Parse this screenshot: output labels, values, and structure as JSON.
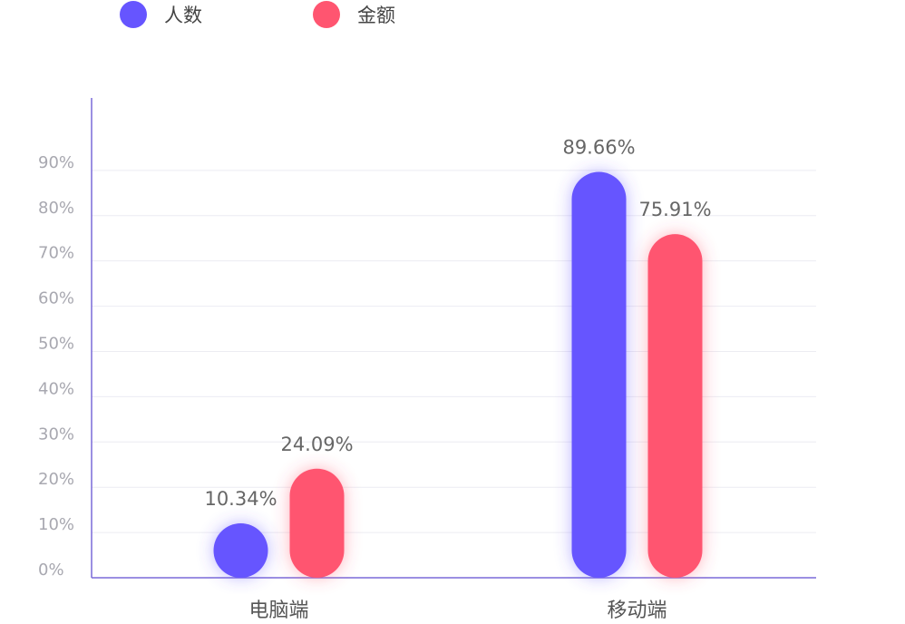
{
  "chart_data": {
    "type": "bar",
    "categories": [
      "电脑端",
      "移动端"
    ],
    "series": [
      {
        "name": "人数",
        "color": "#6655ff",
        "values": [
          10.34,
          89.66
        ],
        "value_labels": [
          "10.34%",
          "89.66%"
        ]
      },
      {
        "name": "金额",
        "color": "#ff5570",
        "values": [
          24.09,
          75.91
        ],
        "value_labels": [
          "24.09%",
          "75.91%"
        ]
      }
    ],
    "ylim": [
      0,
      106
    ],
    "yticks": [
      {
        "value": 0,
        "label": "0%"
      },
      {
        "value": 10,
        "label": "10%"
      },
      {
        "value": 20,
        "label": "20%"
      },
      {
        "value": 30,
        "label": "30%"
      },
      {
        "value": 40,
        "label": "40%"
      },
      {
        "value": 50,
        "label": "50%"
      },
      {
        "value": 60,
        "label": "60%"
      },
      {
        "value": 70,
        "label": "70%"
      },
      {
        "value": 80,
        "label": "80%"
      },
      {
        "value": 90,
        "label": "90%"
      }
    ],
    "grid": true,
    "legend": "top-left"
  }
}
